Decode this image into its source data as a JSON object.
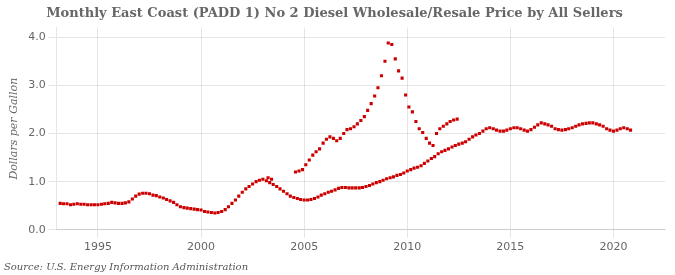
{
  "chart_data": {
    "type": "scatter",
    "title": "Monthly East Coast (PADD 1) No 2 Diesel Wholesale/Resale Price by All Sellers",
    "ylabel": "Dollars per Gallon",
    "source": "Source: U.S. Energy Information Administration",
    "color": "#cc0000",
    "marker": "square",
    "grid": true,
    "xlim": [
      1993.0,
      2022.5
    ],
    "ylim": [
      0.0,
      4.2
    ],
    "xticks": [
      1995,
      2000,
      2005,
      2010,
      2015,
      2020
    ],
    "yticks": [
      {
        "value": 0.0,
        "label": "0.0"
      },
      {
        "value": 1.0,
        "label": "1.0"
      },
      {
        "value": 2.0,
        "label": "2.0"
      },
      {
        "value": 3.0,
        "label": "3.0"
      },
      {
        "value": 4.0,
        "label": "4.0"
      }
    ],
    "x": [
      1993.17,
      1993.33,
      1993.5,
      1993.67,
      1993.83,
      1994.0,
      1994.17,
      1994.33,
      1994.5,
      1994.67,
      1994.83,
      1995.0,
      1995.17,
      1995.33,
      1995.5,
      1995.67,
      1995.83,
      1996.0,
      1996.17,
      1996.33,
      1996.5,
      1996.67,
      1996.83,
      1997.0,
      1997.17,
      1997.33,
      1997.5,
      1997.67,
      1997.83,
      1998.0,
      1998.17,
      1998.33,
      1998.5,
      1998.67,
      1998.83,
      1999.0,
      1999.17,
      1999.33,
      1999.5,
      1999.67,
      1999.83,
      2000.0,
      2000.17,
      2000.33,
      2000.5,
      2000.67,
      2000.83,
      2001.0,
      2001.17,
      2001.33,
      2001.5,
      2001.67,
      2001.83,
      2002.0,
      2002.17,
      2002.33,
      2002.5,
      2002.67,
      2002.83,
      2003.0,
      2003.17,
      2003.33,
      2003.5,
      2003.67,
      2003.83,
      2004.0,
      2004.17,
      2004.33,
      2004.5,
      2004.67,
      2004.83,
      2005.0,
      2005.17,
      2005.33,
      2005.5,
      2005.67,
      2005.83,
      2006.0,
      2006.17,
      2006.33,
      2006.5,
      2006.67,
      2006.83,
      2007.0,
      2007.17,
      2007.33,
      2007.5,
      2007.67,
      2007.83,
      2008.0,
      2008.17,
      2008.33,
      2008.5,
      2008.67,
      2008.83,
      2009.0,
      2009.17,
      2009.33,
      2009.5,
      2009.67,
      2009.83,
      2010.0,
      2010.17,
      2010.33,
      2010.5,
      2010.67,
      2010.83,
      2011.0,
      2011.17,
      2011.33,
      2011.5,
      2011.67,
      2011.83,
      2012.0,
      2012.17,
      2012.33,
      2012.5,
      2012.67,
      2012.83,
      2013.0,
      2013.17,
      2013.33,
      2013.5,
      2013.67,
      2013.83,
      2014.0,
      2014.17,
      2014.33,
      2014.5,
      2014.67,
      2014.83,
      2015.0,
      2015.17,
      2015.33,
      2015.5,
      2015.67,
      2015.83,
      2016.0,
      2016.17,
      2016.33,
      2016.5,
      2016.67,
      2016.83,
      2017.0,
      2017.17,
      2017.33,
      2017.5,
      2017.67,
      2017.83,
      2018.0,
      2018.17,
      2018.33,
      2018.5,
      2018.67,
      2018.83,
      2019.0,
      2019.17,
      2019.33,
      2019.5,
      2019.67,
      2019.83,
      2020.0,
      2020.17,
      2020.33,
      2020.5,
      2020.67,
      2020.83,
      2003.25,
      2003.42,
      2004.58,
      2004.75,
      2004.92,
      2005.08,
      2005.25,
      2005.42,
      2005.58,
      2005.75,
      2005.92,
      2006.08,
      2006.25,
      2006.42,
      2006.58,
      2006.75,
      2006.92,
      2007.08,
      2007.25,
      2007.42,
      2007.58,
      2007.75,
      2007.92,
      2008.08,
      2008.25,
      2008.42,
      2008.58,
      2008.75,
      2008.92,
      2009.08,
      2009.25,
      2009.42,
      2009.58,
      2009.75,
      2009.92,
      2010.08,
      2010.25,
      2010.42,
      2010.58,
      2010.75,
      2010.92,
      2011.08,
      2011.25,
      2011.42,
      2011.58,
      2011.75,
      2011.92,
      2012.08,
      2012.25,
      2012.42
    ],
    "values": [
      0.55,
      0.54,
      0.54,
      0.52,
      0.53,
      0.54,
      0.53,
      0.53,
      0.52,
      0.52,
      0.52,
      0.52,
      0.53,
      0.54,
      0.55,
      0.57,
      0.56,
      0.55,
      0.55,
      0.56,
      0.58,
      0.64,
      0.7,
      0.74,
      0.76,
      0.76,
      0.75,
      0.72,
      0.71,
      0.68,
      0.66,
      0.63,
      0.6,
      0.57,
      0.52,
      0.48,
      0.46,
      0.45,
      0.44,
      0.43,
      0.42,
      0.41,
      0.38,
      0.37,
      0.36,
      0.35,
      0.36,
      0.38,
      0.42,
      0.48,
      0.55,
      0.62,
      0.7,
      0.78,
      0.85,
      0.9,
      0.95,
      1.0,
      1.03,
      1.05,
      1.02,
      0.98,
      0.94,
      0.9,
      0.85,
      0.8,
      0.75,
      0.7,
      0.67,
      0.65,
      0.63,
      0.62,
      0.62,
      0.63,
      0.65,
      0.68,
      0.72,
      0.75,
      0.78,
      0.8,
      0.83,
      0.86,
      0.88,
      0.88,
      0.87,
      0.87,
      0.87,
      0.87,
      0.88,
      0.9,
      0.92,
      0.95,
      0.98,
      1.0,
      1.03,
      1.06,
      1.08,
      1.1,
      1.13,
      1.15,
      1.18,
      1.22,
      1.25,
      1.28,
      1.3,
      1.33,
      1.38,
      1.43,
      1.48,
      1.52,
      1.58,
      1.62,
      1.65,
      1.68,
      1.72,
      1.75,
      1.78,
      1.8,
      1.83,
      1.88,
      1.93,
      1.97,
      2.0,
      2.05,
      2.1,
      2.12,
      2.1,
      2.07,
      2.05,
      2.05,
      2.07,
      2.1,
      2.12,
      2.12,
      2.1,
      2.07,
      2.05,
      2.08,
      2.13,
      2.18,
      2.22,
      2.2,
      2.18,
      2.15,
      2.1,
      2.08,
      2.07,
      2.08,
      2.1,
      2.12,
      2.15,
      2.18,
      2.2,
      2.21,
      2.22,
      2.22,
      2.2,
      2.18,
      2.15,
      2.1,
      2.07,
      2.05,
      2.07,
      2.1,
      2.12,
      2.1,
      2.07,
      1.08,
      1.05,
      1.2,
      1.22,
      1.25,
      1.35,
      1.45,
      1.55,
      1.62,
      1.68,
      1.8,
      1.88,
      1.93,
      1.9,
      1.85,
      1.9,
      2.0,
      2.08,
      2.1,
      2.14,
      2.2,
      2.27,
      2.35,
      2.48,
      2.62,
      2.78,
      2.95,
      3.2,
      3.5,
      3.88,
      3.85,
      3.55,
      3.3,
      3.15,
      2.8,
      2.55,
      2.45,
      2.25,
      2.1,
      2.02,
      1.9,
      1.8,
      1.75,
      2.0,
      2.1,
      2.15,
      2.2,
      2.25,
      2.28,
      2.3
    ]
  }
}
